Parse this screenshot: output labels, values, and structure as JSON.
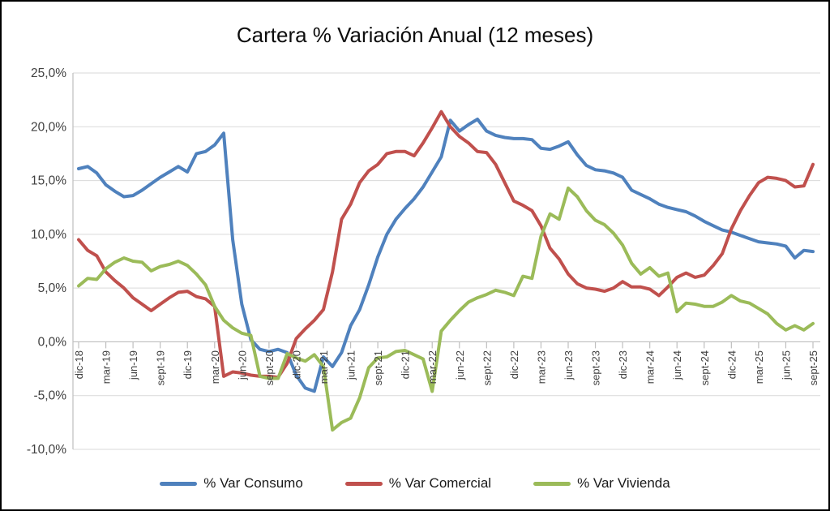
{
  "chart_data": {
    "type": "line",
    "title": "Cartera % Variación Anual (12 meses)",
    "xlabel": "",
    "ylabel": "",
    "ylim": [
      -10,
      25
    ],
    "grid": true,
    "legend_position": "bottom",
    "x_tick_every": 3,
    "y_ticks": [
      {
        "value": 25,
        "label": "25,0%"
      },
      {
        "value": 20,
        "label": "20,0%"
      },
      {
        "value": 15,
        "label": "15,0%"
      },
      {
        "value": 10,
        "label": "10,0%"
      },
      {
        "value": 5,
        "label": "5,0%"
      },
      {
        "value": 0,
        "label": "0,0%"
      },
      {
        "value": -5,
        "label": "-5,0%"
      },
      {
        "value": -10,
        "label": "-10,0%"
      }
    ],
    "categories": [
      "dic-18",
      "ene-19",
      "feb-19",
      "mar-19",
      "abr-19",
      "may-19",
      "jun-19",
      "jul-19",
      "ago-19",
      "sept-19",
      "oct-19",
      "nov-19",
      "dic-19",
      "ene-20",
      "feb-20",
      "mar-20",
      "abr-20",
      "may-20",
      "jun-20",
      "jul-20",
      "ago-20",
      "sept-20",
      "oct-20",
      "nov-20",
      "dic-20",
      "ene-21",
      "feb-21",
      "mar-21",
      "abr-21",
      "may-21",
      "jun-21",
      "jul-21",
      "ago-21",
      "sept-21",
      "oct-21",
      "nov-21",
      "dic-21",
      "ene-22",
      "feb-22",
      "mar-22",
      "abr-22",
      "may-22",
      "jun-22",
      "jul-22",
      "ago-22",
      "sept-22",
      "oct-22",
      "nov-22",
      "dic-22",
      "ene-23",
      "feb-23",
      "mar-23",
      "abr-23",
      "may-23",
      "jun-23",
      "jul-23",
      "ago-23",
      "sept-23",
      "oct-23",
      "nov-23",
      "dic-23",
      "ene-24",
      "feb-24",
      "mar-24",
      "abr-24",
      "may-24",
      "jun-24",
      "jul-24",
      "ago-24",
      "sept-24",
      "oct-24",
      "nov-24",
      "dic-24",
      "ene-25",
      "feb-25",
      "mar-25",
      "abr-25",
      "may-25",
      "jun-25",
      "jul-25",
      "ago-25",
      "sept-25"
    ],
    "series": [
      {
        "name": "% Var Consumo",
        "color": "#4F81BD",
        "values": [
          16.1,
          16.3,
          15.7,
          14.6,
          14.0,
          13.5,
          13.6,
          14.1,
          14.7,
          15.3,
          15.8,
          16.3,
          15.8,
          17.5,
          17.7,
          18.3,
          19.4,
          9.5,
          3.5,
          0.2,
          -0.7,
          -0.9,
          -0.7,
          -1.0,
          -3.1,
          -4.3,
          -4.6,
          -1.4,
          -2.3,
          -1.0,
          1.5,
          3.0,
          5.3,
          7.9,
          10.0,
          11.4,
          12.4,
          13.3,
          14.4,
          15.8,
          17.2,
          20.6,
          19.6,
          20.2,
          20.7,
          19.6,
          19.2,
          19.0,
          18.9,
          18.9,
          18.8,
          18.0,
          17.9,
          18.2,
          18.6,
          17.4,
          16.4,
          16.0,
          15.9,
          15.7,
          15.3,
          14.1,
          13.7,
          13.3,
          12.8,
          12.5,
          12.3,
          12.1,
          11.7,
          11.2,
          10.8,
          10.4,
          10.2,
          9.9,
          9.6,
          9.3,
          9.2,
          9.1,
          8.9,
          7.8,
          8.5,
          8.4
        ]
      },
      {
        "name": "% Var Comercial",
        "color": "#C0504D",
        "values": [
          9.5,
          8.5,
          8.0,
          6.5,
          5.7,
          5.0,
          4.1,
          3.5,
          2.9,
          3.5,
          4.1,
          4.6,
          4.7,
          4.2,
          4.0,
          3.3,
          -3.2,
          -2.8,
          -2.9,
          -3.1,
          -3.2,
          -3.2,
          -3.3,
          -2.0,
          0.3,
          1.2,
          2.0,
          3.0,
          6.5,
          11.4,
          12.8,
          14.8,
          15.9,
          16.5,
          17.5,
          17.7,
          17.7,
          17.3,
          18.5,
          19.9,
          21.4,
          20.0,
          19.1,
          18.5,
          17.7,
          17.6,
          16.5,
          14.8,
          13.1,
          12.7,
          12.2,
          10.8,
          8.7,
          7.7,
          6.3,
          5.4,
          5.0,
          4.9,
          4.7,
          5.0,
          5.6,
          5.1,
          5.1,
          4.9,
          4.3,
          5.1,
          6.0,
          6.4,
          6.0,
          6.2,
          7.1,
          8.2,
          10.5,
          12.2,
          13.6,
          14.8,
          15.3,
          15.2,
          15.0,
          14.4,
          14.5,
          16.5
        ]
      },
      {
        "name": "% Var Vivienda",
        "color": "#9BBB59",
        "values": [
          5.2,
          5.9,
          5.8,
          6.8,
          7.4,
          7.8,
          7.5,
          7.4,
          6.6,
          7.0,
          7.2,
          7.5,
          7.1,
          6.3,
          5.3,
          3.3,
          2.0,
          1.3,
          0.8,
          0.6,
          -3.2,
          -3.4,
          -3.4,
          -1.1,
          -1.5,
          -1.8,
          -1.2,
          -2.3,
          -8.2,
          -7.5,
          -7.1,
          -5.2,
          -2.4,
          -1.5,
          -1.4,
          -0.9,
          -0.8,
          -1.2,
          -1.6,
          -4.6,
          1.0,
          2.0,
          2.9,
          3.7,
          4.1,
          4.4,
          4.8,
          4.6,
          4.3,
          6.1,
          5.9,
          9.8,
          11.9,
          11.4,
          14.3,
          13.5,
          12.2,
          11.3,
          10.9,
          10.1,
          9.0,
          7.3,
          6.3,
          6.9,
          6.1,
          6.4,
          2.8,
          3.6,
          3.5,
          3.3,
          3.3,
          3.7,
          4.3,
          3.8,
          3.6,
          3.1,
          2.6,
          1.7,
          1.1,
          1.5,
          1.1,
          1.7
        ]
      }
    ],
    "style": {
      "gridline_color": "#D9D9D9",
      "axis_color": "#BFBFBF",
      "tick_label_color": "#404040",
      "title_color": "#0d0d0d",
      "line_width": 4
    }
  }
}
